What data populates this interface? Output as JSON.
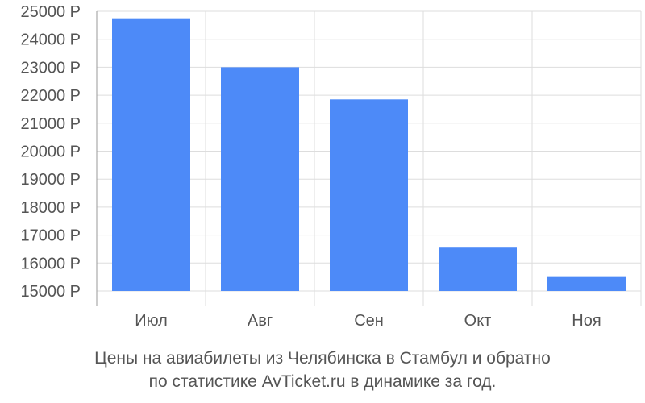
{
  "chart_data": {
    "type": "bar",
    "categories": [
      "Июл",
      "Авг",
      "Сен",
      "Окт",
      "Ноя"
    ],
    "values": [
      24750,
      23000,
      21850,
      16550,
      15500
    ],
    "ylim": [
      15000,
      25000
    ],
    "yticks": [
      15000,
      16000,
      17000,
      18000,
      19000,
      20000,
      21000,
      22000,
      23000,
      24000,
      25000
    ],
    "ytick_suffix": " Р",
    "grid": true,
    "bar_color": "#4d8af8",
    "caption_line1": "Цены на авиабилеты из Челябинска в Стамбул и обратно",
    "caption_line2": "по статистике AvTicket.ru в динамике за год."
  }
}
